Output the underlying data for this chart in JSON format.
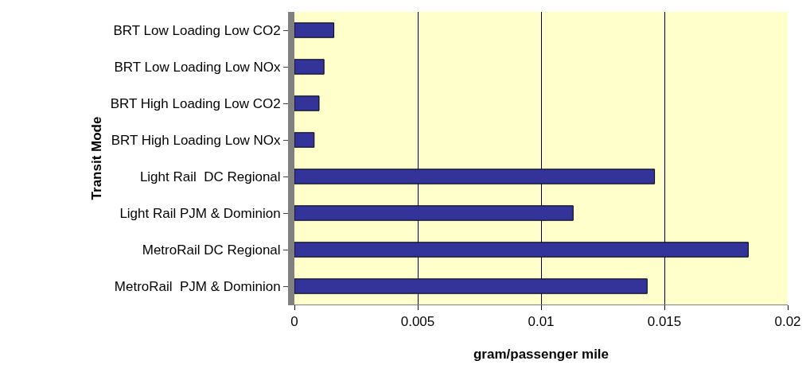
{
  "chart_data": {
    "type": "bar",
    "orientation": "horizontal",
    "xlabel": "gram/passenger mile",
    "ylabel": "Transit Mode",
    "categories": [
      "BRT Low Loading Low CO2",
      "BRT Low Loading Low NOx",
      "BRT High Loading Low CO2",
      "BRT High Loading Low NOx",
      "Light Rail  DC Regional",
      "Light Rail PJM & Dominion",
      "MetroRail DC Regional",
      "MetroRail  PJM & Dominion"
    ],
    "values": [
      0.0016,
      0.0012,
      0.001,
      0.0008,
      0.0146,
      0.0113,
      0.0184,
      0.0143
    ],
    "color": "#333399",
    "xlim": [
      0,
      0.02
    ],
    "xticks": [
      0,
      0.005,
      0.01,
      0.015,
      0.02
    ],
    "grid": "x"
  }
}
